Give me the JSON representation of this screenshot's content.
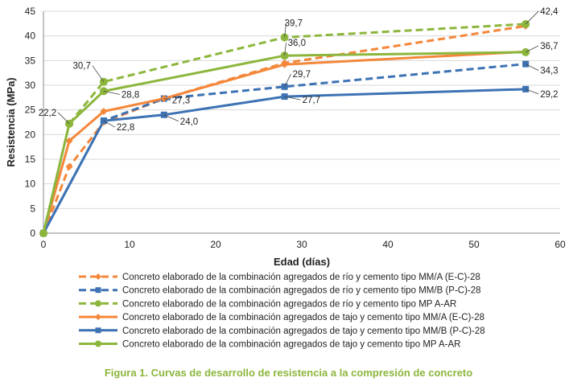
{
  "caption": "Figura 1. Curvas de desarrollo de resistencia a la compresión de concreto",
  "colors": {
    "orange": "#F4873A",
    "blue": "#3D72B4",
    "green": "#8CB63C"
  },
  "chart_data": {
    "type": "line",
    "xlabel": "Edad (días)",
    "ylabel": "Resistencia (MPa)",
    "xlim": [
      0,
      60
    ],
    "ylim": [
      0,
      45
    ],
    "xticks": [
      0,
      10,
      20,
      30,
      40,
      50,
      60
    ],
    "yticks": [
      0,
      5,
      10,
      15,
      20,
      25,
      30,
      35,
      40,
      45
    ],
    "grid": "horizontal",
    "legend_position": "bottom",
    "series": [
      {
        "name": "Concreto elaborado de la combinación agregados de río y cemento tipo MM/A (E-C)-28",
        "color": "#F4873A",
        "dashed": true,
        "marker": "diamond",
        "x": [
          0,
          3,
          7,
          14,
          28,
          56
        ],
        "y": [
          0,
          13.5,
          22.5,
          27.3,
          34.5,
          42.0
        ],
        "labels": [
          "",
          "",
          "",
          "",
          "",
          ""
        ]
      },
      {
        "name": "Concreto elaborado de la combinación agregados de río y cemento tipo MM/B (P-C)-28",
        "color": "#3D72B4",
        "dashed": true,
        "marker": "square",
        "x": [
          0,
          7,
          14,
          28,
          56
        ],
        "y": [
          0,
          22.8,
          27.3,
          29.7,
          34.3
        ],
        "labels": [
          "",
          "22,8",
          "27,3",
          "29,7",
          "34,3"
        ]
      },
      {
        "name": "Concreto elaborado de la combinación agregados de río y cemento tipo MP A-AR",
        "color": "#8CB63C",
        "dashed": true,
        "marker": "circle",
        "x": [
          0,
          3,
          7,
          28,
          56
        ],
        "y": [
          0,
          22.2,
          30.7,
          39.7,
          42.4
        ],
        "labels": [
          "",
          "22,2",
          "30,7",
          "39,7",
          "42,4"
        ]
      },
      {
        "name": "Concreto elaborado de la combinación agregados de tajo y cemento tipo MM/A (E-C)-28",
        "color": "#F4873A",
        "dashed": false,
        "marker": "diamond",
        "x": [
          0,
          3,
          7,
          14,
          28,
          56
        ],
        "y": [
          0,
          18.7,
          24.7,
          27.3,
          34.2,
          36.8
        ],
        "labels": [
          "",
          "",
          "",
          "",
          "",
          ""
        ]
      },
      {
        "name": "Concreto elaborado de la combinación agregados de tajo y cemento tipo MM/B (P-C)-28",
        "color": "#3D72B4",
        "dashed": false,
        "marker": "square",
        "x": [
          0,
          7,
          14,
          28,
          56
        ],
        "y": [
          0,
          22.8,
          24.0,
          27.7,
          29.2
        ],
        "labels": [
          "",
          "",
          "24,0",
          "27,7",
          "29,2"
        ]
      },
      {
        "name": "Concreto elaborado de la combinación agregados de tajo y cemento tipo MP A-AR",
        "color": "#8CB63C",
        "dashed": false,
        "marker": "circle",
        "x": [
          0,
          3,
          7,
          28,
          56
        ],
        "y": [
          0,
          22.2,
          28.8,
          36.0,
          36.7
        ],
        "labels": [
          "",
          "",
          "28,8",
          "36,0",
          "36,7"
        ]
      }
    ]
  }
}
